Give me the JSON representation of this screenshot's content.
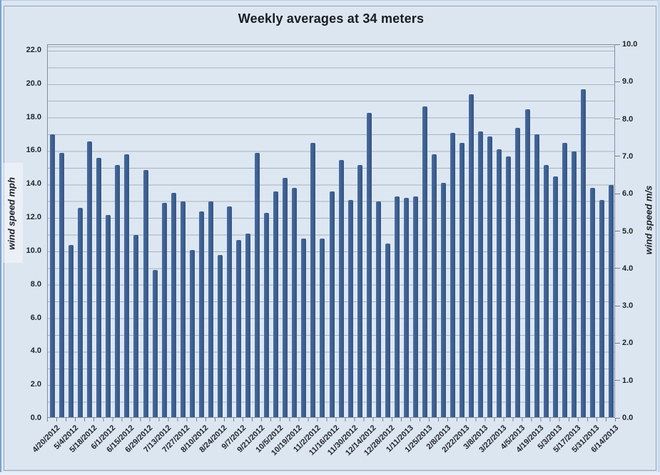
{
  "title": "Weekly averages at 34 meters",
  "axes": {
    "left": {
      "title": "wind speed mph",
      "tick_labels": [
        "0.0",
        "2.0",
        "4.0",
        "6.0",
        "8.0",
        "10.0",
        "12.0",
        "14.0",
        "16.0",
        "18.0",
        "20.0",
        "22.0"
      ]
    },
    "right": {
      "title": "wind speed m/s",
      "tick_labels": [
        "0.0",
        "1.0",
        "2.0",
        "3.0",
        "4.0",
        "5.0",
        "6.0",
        "7.0",
        "8.0",
        "9.0",
        "10.0"
      ]
    }
  },
  "chart_data": {
    "type": "bar",
    "title": "Weekly averages at 34 meters",
    "ylabel_left": "wind speed mph",
    "ylabel_right": "wind speed m/s",
    "ylim_left": [
      0,
      22
    ],
    "ylim_right": [
      0,
      10
    ],
    "grid": "horizontal lines every 1.0 mph",
    "legend": "none",
    "x_tick_labels": [
      "4/20/2012",
      "5/4/2012",
      "5/18/2012",
      "6/1/2012",
      "6/15/2012",
      "6/29/2012",
      "7/13/2012",
      "7/27/2012",
      "8/10/2012",
      "8/24/2012",
      "9/7/2012",
      "9/21/2012",
      "10/5/2012",
      "10/19/2012",
      "11/2/2012",
      "11/16/2012",
      "11/30/2012",
      "12/14/2012",
      "12/28/2012",
      "1/11/2013",
      "1/25/2013",
      "2/8/2013",
      "2/22/2013",
      "3/8/2013",
      "3/22/2013",
      "4/5/2013",
      "4/19/2013",
      "5/3/2013",
      "5/17/2013",
      "5/31/2013",
      "6/14/2013"
    ],
    "x_label_every_n_bars": 2,
    "values_mph": [
      16.9,
      15.8,
      10.3,
      12.5,
      16.5,
      15.5,
      12.1,
      15.1,
      15.7,
      10.9,
      14.8,
      8.8,
      12.8,
      13.4,
      12.9,
      10.0,
      12.3,
      12.9,
      9.7,
      12.6,
      10.6,
      11.0,
      15.8,
      12.2,
      13.5,
      14.3,
      13.7,
      10.7,
      16.4,
      10.7,
      13.5,
      15.4,
      13.0,
      15.1,
      18.2,
      12.9,
      10.4,
      13.2,
      13.1,
      13.2,
      18.6,
      15.7,
      14.0,
      17.0,
      16.4,
      19.3,
      17.1,
      16.8,
      16.0,
      15.6,
      17.3,
      18.4,
      16.9,
      15.1,
      14.4,
      16.4,
      15.9,
      19.6,
      13.7,
      13.0,
      13.9
    ]
  },
  "colors": {
    "background": "#dce6f1",
    "plot_background": "#dde7f2",
    "bar_fill": "#3d6094",
    "gridline": "#a9b2bf",
    "axis_line": "#828e9d",
    "text": "#1f242b"
  }
}
